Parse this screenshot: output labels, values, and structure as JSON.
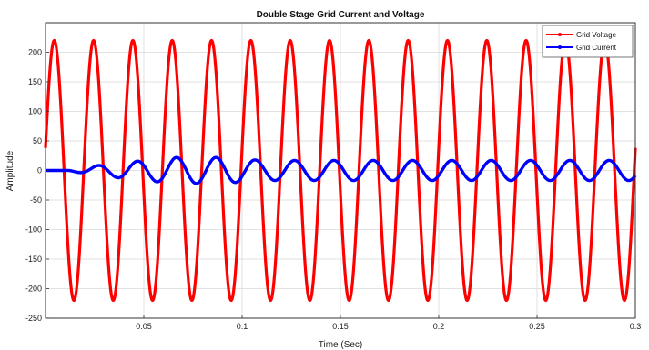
{
  "chart_data": {
    "type": "line",
    "title": "Double Stage Grid Current and Voltage",
    "xlabel": "Time (Sec)",
    "ylabel": "Amplitude",
    "xlim": [
      0,
      0.3
    ],
    "ylim": [
      -250,
      250
    ],
    "xticks": [
      0.05,
      0.1,
      0.15,
      0.2,
      0.25,
      0.3
    ],
    "xtick_labels": [
      "0.05",
      "0.1",
      "0.15",
      "0.2",
      "0.25",
      "0.3"
    ],
    "yticks": [
      200,
      150,
      100,
      50,
      0,
      -50,
      -100,
      -150,
      -200,
      -250
    ],
    "ytick_labels": [
      "200",
      "150",
      "100",
      "50",
      "0",
      "-50",
      "-100",
      "-150",
      "-200",
      "-250"
    ],
    "grid": true,
    "legend_position": "top-right",
    "series": [
      {
        "name": "Grid Voltage",
        "color": "#ff0000",
        "kind": "sinusoid",
        "amplitude": 220,
        "frequency_hz": 50,
        "phase_deg": 10,
        "x_range": [
          0,
          0.3
        ]
      },
      {
        "name": "Grid Current",
        "color": "#0000ff",
        "kind": "sinusoid",
        "amplitude_envelope": [
          [
            0.0,
            0
          ],
          [
            0.01,
            0
          ],
          [
            0.03,
            10
          ],
          [
            0.065,
            22
          ],
          [
            0.09,
            22
          ],
          [
            0.11,
            17
          ],
          [
            0.3,
            17
          ]
        ],
        "frequency_hz": 50,
        "phase_deg": -30,
        "x_range": [
          0,
          0.3
        ]
      }
    ]
  }
}
